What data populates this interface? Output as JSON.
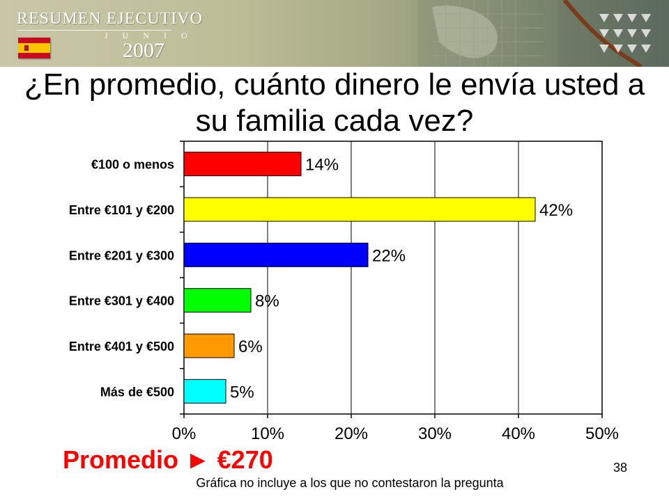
{
  "banner": {
    "title": "RESUMEN EJECUTIVO",
    "month": "J U N I O",
    "year": "2007",
    "flag_colors": [
      "#c60b1e",
      "#ffc400"
    ]
  },
  "slide": {
    "title": "¿En promedio, cuánto dinero le envía usted a su familia cada vez?",
    "average": "Promedio ► €270",
    "average_color": "#ff0000",
    "page_number": "38",
    "footnote": "Gráfica no incluye a los que no contestaron la pregunta"
  },
  "chart_data": {
    "type": "bar",
    "orientation": "horizontal",
    "categories": [
      "€100 o menos",
      "Entre €101 y  €200",
      "Entre €201 y €300",
      "Entre €301 y €400",
      "Entre €401 y €500",
      "Más de  €500"
    ],
    "values": [
      14,
      42,
      22,
      8,
      6,
      5
    ],
    "data_labels": [
      "14%",
      "42%",
      "22%",
      "8%",
      "6%",
      "5%"
    ],
    "colors": [
      "#ff0000",
      "#ffff00",
      "#0000ff",
      "#00ff00",
      "#ff9900",
      "#00ffff"
    ],
    "xlim": [
      0,
      50
    ],
    "x_ticks": [
      0,
      10,
      20,
      30,
      40,
      50
    ],
    "x_tick_labels": [
      "0%",
      "10%",
      "20%",
      "30%",
      "40%",
      "50%"
    ],
    "grid": "vertical",
    "legend": "none"
  }
}
